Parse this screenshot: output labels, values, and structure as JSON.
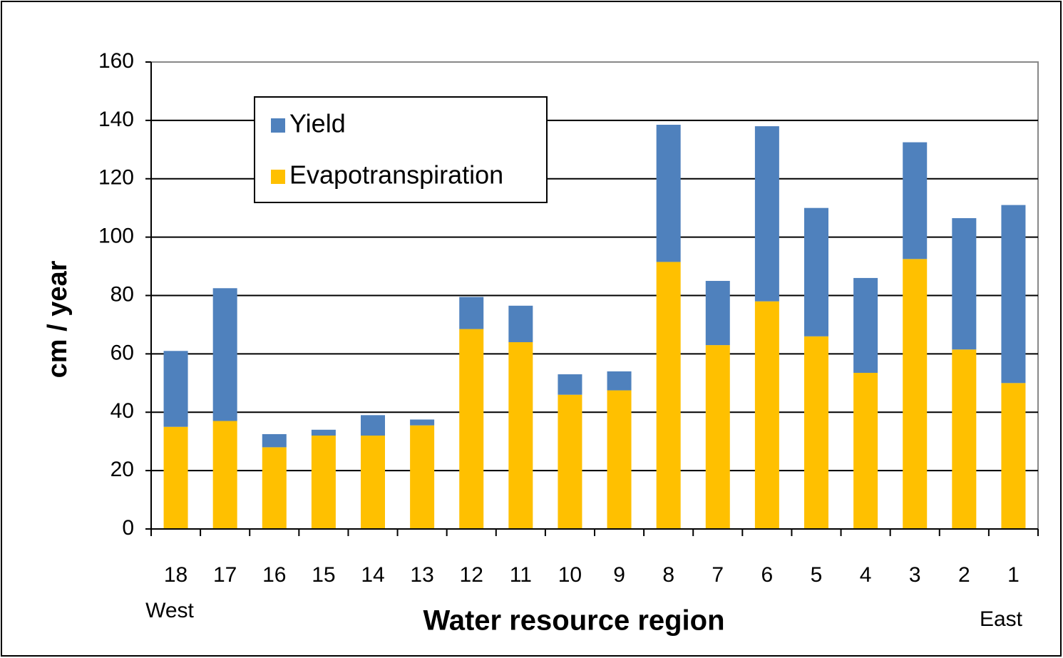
{
  "chart_data": {
    "type": "stacked_bar",
    "categories": [
      "18",
      "17",
      "16",
      "15",
      "14",
      "13",
      "12",
      "11",
      "10",
      "9",
      "8",
      "7",
      "6",
      "5",
      "4",
      "3",
      "2",
      "1"
    ],
    "series": [
      {
        "name": "Yield",
        "color": "#4f81bd",
        "values": [
          26,
          45.5,
          4.5,
          2,
          7,
          2,
          11,
          12.5,
          7,
          6.5,
          47,
          22,
          60,
          44,
          32.5,
          40,
          45,
          61
        ]
      },
      {
        "name": "Evapotranspiration",
        "color": "#ffc000",
        "values": [
          35,
          37,
          28,
          32,
          32,
          35.5,
          68.5,
          64,
          46,
          47.5,
          91.5,
          63,
          78,
          66,
          53.5,
          92.5,
          61.5,
          50
        ]
      }
    ],
    "ylabel": "cm / year",
    "xlabel": "Water resource region",
    "annotations": [
      "West",
      "East"
    ],
    "ylim": [
      0,
      160
    ],
    "yticks": [
      0,
      20,
      40,
      60,
      80,
      100,
      120,
      140,
      160
    ],
    "grid": true,
    "legend": "upper left"
  }
}
